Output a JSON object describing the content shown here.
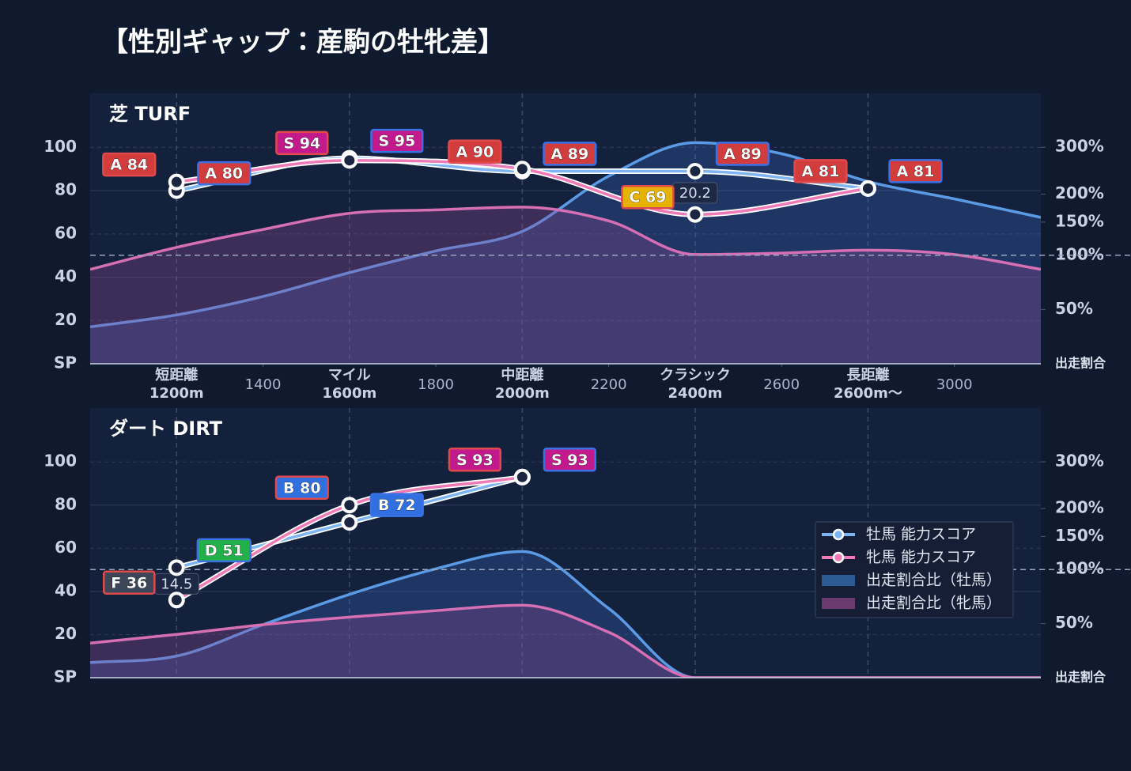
{
  "title": "【性別ギャップ：産駒の牡牝差】",
  "chart_data": [
    {
      "type": "line",
      "title": "芝 TURF",
      "xlim": [
        1000,
        3200
      ],
      "xticks": [
        {
          "value": 1200,
          "label": [
            "短距離",
            "1200m"
          ]
        },
        1400,
        {
          "value": 1600,
          "label": [
            "マイル",
            "1600m"
          ]
        },
        1800,
        {
          "value": 2000,
          "label": [
            "中距離",
            "2000m"
          ]
        },
        2200,
        {
          "value": 2400,
          "label": [
            "クラシック",
            "2400m"
          ]
        },
        2600,
        {
          "value": 2800,
          "label": [
            "長距離",
            "2600m〜"
          ]
        },
        3000
      ],
      "xtick_labels": true,
      "ylim": [
        0,
        125
      ],
      "yticks": [
        {
          "value": 0,
          "label": "SP"
        },
        20,
        40,
        60,
        80,
        100
      ],
      "y2lim": [
        0,
        440
      ],
      "y2scale": "compressed",
      "y2ticks": [
        {
          "value": 50,
          "label": "50%"
        },
        {
          "value": 100,
          "label": "100%"
        },
        {
          "value": 150,
          "label": "150%"
        },
        {
          "value": 200,
          "label": "200%"
        },
        {
          "value": 300,
          "label": "300%"
        }
      ],
      "y2label": "出走割合",
      "y2ref": 100,
      "areas": [
        {
          "axis": "y2",
          "color": "#5b9be6",
          "x": [
            1000,
            1200,
            1400,
            1600,
            1800,
            2000,
            2200,
            2400,
            2600,
            2800,
            3000,
            3200
          ],
          "values": [
            34,
            45,
            62,
            84,
            106,
            135,
            236,
            311,
            285,
            225,
            191,
            158
          ]
        },
        {
          "axis": "y2",
          "color": "#d66fb4",
          "x": [
            1000,
            1200,
            1400,
            1600,
            1800,
            2000,
            2200,
            2400,
            2600,
            2800,
            3000,
            3200
          ],
          "values": [
            87,
            111,
            138,
            165,
            171,
            176,
            152,
            101,
            103,
            107,
            101,
            87
          ]
        }
      ],
      "series": [
        {
          "color": "#7fb4f2",
          "x": [
            1200,
            1600,
            2000,
            2400,
            2800
          ],
          "values": [
            80,
            95,
            89,
            89,
            81
          ],
          "value_labels": [
            "A 80",
            "S 95",
            "A 89",
            "A 89",
            "A 81"
          ]
        },
        {
          "color": "#f07ab8",
          "x": [
            1200,
            1600,
            2000,
            2400,
            2800
          ],
          "values": [
            84,
            94,
            90,
            69,
            81
          ],
          "value_labels": [
            "A 84",
            "S 94",
            "A 90",
            "C 69",
            "A 81"
          ]
        }
      ],
      "annotations": [
        {
          "x": 2400,
          "text": "20.2"
        }
      ]
    },
    {
      "type": "line",
      "title": "ダート DIRT",
      "xlim": [
        1000,
        3200
      ],
      "xticks": [
        1200,
        1600,
        2000,
        2400,
        2800
      ],
      "xtick_labels": false,
      "ylim": [
        0,
        125
      ],
      "yticks": [
        {
          "value": 0,
          "label": "SP"
        },
        20,
        40,
        60,
        80,
        100
      ],
      "y2lim": [
        0,
        440
      ],
      "y2scale": "compressed",
      "y2ticks": [
        {
          "value": 50,
          "label": "50%"
        },
        {
          "value": 100,
          "label": "100%"
        },
        {
          "value": 150,
          "label": "150%"
        },
        {
          "value": 200,
          "label": "200%"
        },
        {
          "value": 300,
          "label": "300%"
        }
      ],
      "y2label": "出走割合",
      "y2ref": 100,
      "areas": [
        {
          "name": "出走割合比（牡馬）",
          "axis": "y2",
          "color": "#5b9be6",
          "x": [
            1000,
            1200,
            1400,
            1600,
            1800,
            2000,
            2200,
            2400,
            2600,
            2800,
            3000,
            3200
          ],
          "values": [
            14,
            20,
            49,
            77,
            101,
            126,
            64,
            0,
            0,
            0,
            0,
            0
          ]
        },
        {
          "name": "出走割合比（牝馬）",
          "axis": "y2",
          "color": "#d66fb4",
          "x": [
            1000,
            1200,
            1400,
            1600,
            1800,
            2000,
            2200,
            2400,
            2600,
            2800,
            3000,
            3200
          ],
          "values": [
            32,
            40,
            49,
            56,
            62,
            67,
            42,
            0,
            0,
            0,
            0,
            0
          ]
        }
      ],
      "series": [
        {
          "name": "牡馬 能力スコア",
          "color": "#7fb4f2",
          "x": [
            1200,
            1600,
            2000
          ],
          "values": [
            51,
            72,
            93
          ],
          "value_labels": [
            "D 51",
            "B 72",
            "S 93"
          ]
        },
        {
          "name": "牝馬 能力スコア",
          "color": "#f07ab8",
          "x": [
            1200,
            1600,
            2000
          ],
          "values": [
            36,
            80,
            93
          ],
          "value_labels": [
            "F 36",
            "B 80",
            "S 93"
          ]
        }
      ],
      "annotations": [
        {
          "x": 1200,
          "text": "14.5"
        }
      ],
      "legend": "right"
    }
  ]
}
